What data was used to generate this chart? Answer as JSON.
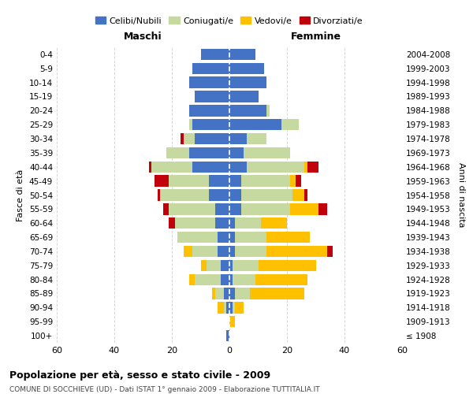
{
  "age_groups": [
    "100+",
    "95-99",
    "90-94",
    "85-89",
    "80-84",
    "75-79",
    "70-74",
    "65-69",
    "60-64",
    "55-59",
    "50-54",
    "45-49",
    "40-44",
    "35-39",
    "30-34",
    "25-29",
    "20-24",
    "15-19",
    "10-14",
    "5-9",
    "0-4"
  ],
  "birth_years": [
    "≤ 1908",
    "1909-1913",
    "1914-1918",
    "1919-1923",
    "1924-1928",
    "1929-1933",
    "1934-1938",
    "1939-1943",
    "1944-1948",
    "1949-1953",
    "1954-1958",
    "1959-1963",
    "1964-1968",
    "1969-1973",
    "1974-1978",
    "1979-1983",
    "1984-1988",
    "1989-1993",
    "1994-1998",
    "1999-2003",
    "2004-2008"
  ],
  "colors": {
    "celibe": "#4472c4",
    "coniugato": "#c5d9a0",
    "vedovo": "#ffc000",
    "divorziato": "#c0000b"
  },
  "maschi": {
    "celibe": [
      1,
      0,
      1,
      2,
      3,
      3,
      4,
      4,
      5,
      5,
      7,
      7,
      13,
      14,
      12,
      13,
      14,
      12,
      14,
      13,
      10
    ],
    "coniugato": [
      0,
      0,
      1,
      3,
      9,
      5,
      9,
      14,
      14,
      16,
      17,
      14,
      14,
      8,
      4,
      1,
      0,
      0,
      0,
      0,
      0
    ],
    "vedovo": [
      0,
      0,
      2,
      1,
      2,
      2,
      3,
      0,
      0,
      0,
      0,
      0,
      0,
      0,
      0,
      0,
      0,
      0,
      0,
      0,
      0
    ],
    "divorziato": [
      0,
      0,
      0,
      0,
      0,
      0,
      0,
      0,
      2,
      2,
      1,
      5,
      1,
      0,
      1,
      0,
      0,
      0,
      0,
      0,
      0
    ]
  },
  "femmine": {
    "nubile": [
      0,
      0,
      1,
      2,
      1,
      1,
      2,
      2,
      2,
      4,
      4,
      4,
      6,
      5,
      6,
      18,
      13,
      10,
      13,
      12,
      9
    ],
    "coniugata": [
      0,
      0,
      1,
      5,
      8,
      9,
      11,
      11,
      9,
      17,
      18,
      17,
      20,
      16,
      7,
      6,
      1,
      0,
      0,
      0,
      0
    ],
    "vedova": [
      0,
      2,
      3,
      19,
      18,
      20,
      21,
      15,
      9,
      10,
      4,
      2,
      1,
      0,
      0,
      0,
      0,
      0,
      0,
      0,
      0
    ],
    "divorziata": [
      0,
      0,
      0,
      0,
      0,
      0,
      2,
      0,
      0,
      3,
      1,
      2,
      4,
      0,
      0,
      0,
      0,
      0,
      0,
      0,
      0
    ]
  },
  "xlim": 60,
  "title": "Popolazione per età, sesso e stato civile - 2009",
  "subtitle": "COMUNE DI SOCCHIEVE (UD) - Dati ISTAT 1° gennaio 2009 - Elaborazione TUTTITALIA.IT",
  "ylabel_left": "Fasce di età",
  "ylabel_right": "Anni di nascita",
  "xlabel_left": "Maschi",
  "xlabel_right": "Femmine",
  "legend_labels": [
    "Celibi/Nubili",
    "Coniugati/e",
    "Vedovi/e",
    "Divorziati/e"
  ],
  "background_color": "#ffffff",
  "grid_color": "#cccccc"
}
